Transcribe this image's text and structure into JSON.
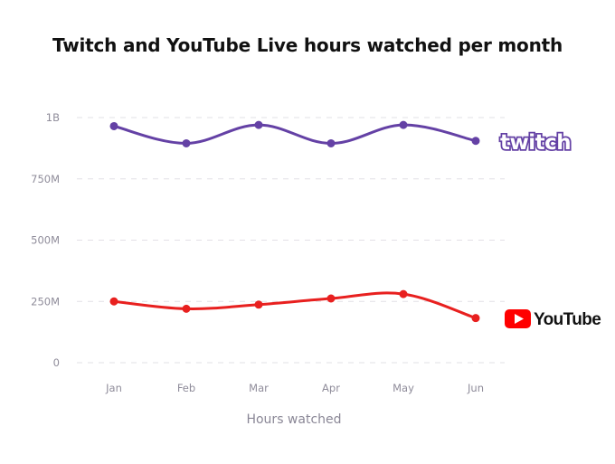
{
  "chart_data": {
    "type": "line",
    "title": "Twitch and YouTube Live hours watched per month",
    "xlabel": "Hours watched",
    "ylabel": "",
    "categories": [
      "Jan",
      "Feb",
      "Mar",
      "Apr",
      "May",
      "Jun"
    ],
    "y_ticks": [
      {
        "value": 0,
        "label": "0"
      },
      {
        "value": 250000000,
        "label": "250M"
      },
      {
        "value": 500000000,
        "label": "500M"
      },
      {
        "value": 750000000,
        "label": "750M"
      },
      {
        "value": 1000000000,
        "label": "1B"
      }
    ],
    "ylim": [
      0,
      1000000000
    ],
    "grid": true,
    "legend": "right, brand logos",
    "series": [
      {
        "name": "twitch",
        "color": "#6441a5",
        "values": [
          965000000,
          895000000,
          970000000,
          895000000,
          970000000,
          905000000
        ]
      },
      {
        "name": "YouTube",
        "color": "#e8201f",
        "values": [
          250000000,
          220000000,
          237000000,
          262000000,
          280000000,
          182000000
        ]
      }
    ]
  }
}
